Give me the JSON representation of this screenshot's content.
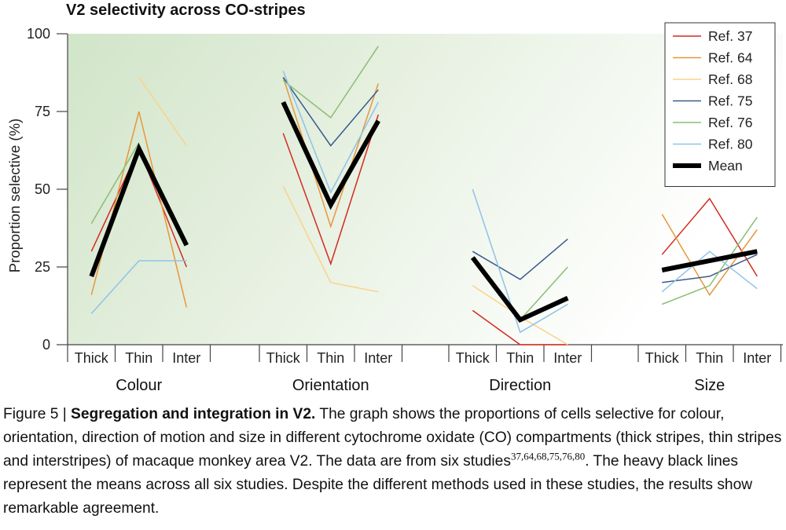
{
  "chart_data": {
    "type": "line",
    "title": "V2 selectivity across CO-stripes",
    "ylabel": "Proportion selective (%)",
    "xlabel": "",
    "ylim": [
      0,
      100
    ],
    "yticks": [
      0,
      25,
      50,
      75,
      100
    ],
    "grid": false,
    "legend_position": "top-right",
    "groups": [
      "Colour",
      "Orientation",
      "Direction",
      "Size"
    ],
    "categories": [
      "Thick",
      "Thin",
      "Inter"
    ],
    "series": [
      {
        "name": "Ref. 37",
        "color": "#d42a20",
        "width": 1.5,
        "values": [
          [
            30,
            63,
            25
          ],
          [
            68,
            26,
            74
          ],
          [
            11,
            0,
            0
          ],
          [
            29,
            47,
            22
          ]
        ]
      },
      {
        "name": "Ref. 64",
        "color": "#e8963c",
        "width": 1.5,
        "values": [
          [
            16,
            75,
            12
          ],
          [
            86,
            38,
            84
          ],
          [
            null,
            null,
            null
          ],
          [
            42,
            16,
            37
          ]
        ]
      },
      {
        "name": "Ref. 68",
        "color": "#fbd28a",
        "width": 1.5,
        "values": [
          [
            null,
            86,
            64
          ],
          [
            51,
            20,
            17
          ],
          [
            19,
            9,
            0
          ],
          [
            null,
            null,
            null
          ]
        ]
      },
      {
        "name": "Ref. 75",
        "color": "#3a5a8c",
        "width": 1.5,
        "values": [
          [
            null,
            null,
            null
          ],
          [
            86,
            64,
            82
          ],
          [
            30,
            21,
            34
          ],
          [
            20,
            22,
            29
          ]
        ]
      },
      {
        "name": "Ref. 76",
        "color": "#8cbd72",
        "width": 1.5,
        "values": [
          [
            39,
            65,
            null
          ],
          [
            85,
            73,
            96
          ],
          [
            null,
            8,
            25
          ],
          [
            13,
            19,
            41
          ]
        ]
      },
      {
        "name": "Ref. 80",
        "color": "#8ec3e8",
        "width": 1.5,
        "values": [
          [
            10,
            27,
            27
          ],
          [
            88,
            49,
            78
          ],
          [
            50,
            4,
            13
          ],
          [
            17,
            30,
            18
          ]
        ]
      },
      {
        "name": "Mean",
        "color": "#000000",
        "width": 6,
        "values": [
          [
            22,
            63,
            32
          ],
          [
            78,
            45,
            72
          ],
          [
            28,
            8,
            15
          ],
          [
            24,
            27,
            30
          ]
        ]
      }
    ]
  },
  "caption": {
    "prefix": "Figure 5 | ",
    "title": "Segregation and integration in V2.",
    "text1": " The graph shows the proportions of cells selective for colour, orientation, direction of motion and size in different cytochrome oxidate (CO) compartments (thick stripes, thin stripes and interstripes) of macaque monkey area V2. The data are from six studies",
    "refs": "37,64,68,75,76,80",
    "text2": ". The heavy black lines represent the means across all six studies. Despite the different methods used in these studies, the results show remarkable agreement."
  },
  "colors": {
    "background_gradient_start": "#d3e6cb",
    "background_gradient_end": "#ffffff"
  }
}
